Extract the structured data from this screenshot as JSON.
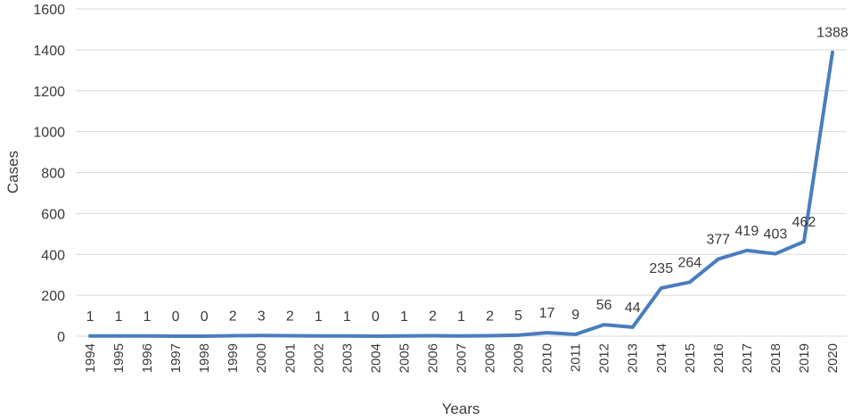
{
  "chart_data": {
    "type": "line",
    "title": "",
    "xlabel": "Years",
    "ylabel": "Cases",
    "ylim": [
      0,
      1600
    ],
    "yticks": [
      0,
      200,
      400,
      600,
      800,
      1000,
      1200,
      1400,
      1600
    ],
    "grid": true,
    "legend": "none",
    "line_color": "#4a7dbd",
    "x": [
      "1994",
      "1995",
      "1996",
      "1997",
      "1998",
      "1999",
      "2000",
      "2001",
      "2002",
      "2003",
      "2004",
      "2005",
      "2006",
      "2007",
      "2008",
      "2009",
      "2010",
      "2011",
      "2012",
      "2013",
      "2014",
      "2015",
      "2016",
      "2017",
      "2018",
      "2019",
      "2020"
    ],
    "series": [
      {
        "values": [
          1,
          1,
          1,
          0,
          0,
          2,
          3,
          2,
          1,
          1,
          0,
          1,
          2,
          1,
          2,
          5,
          17,
          9,
          56,
          44,
          235,
          264,
          377,
          419,
          403,
          462,
          1388
        ]
      }
    ]
  }
}
